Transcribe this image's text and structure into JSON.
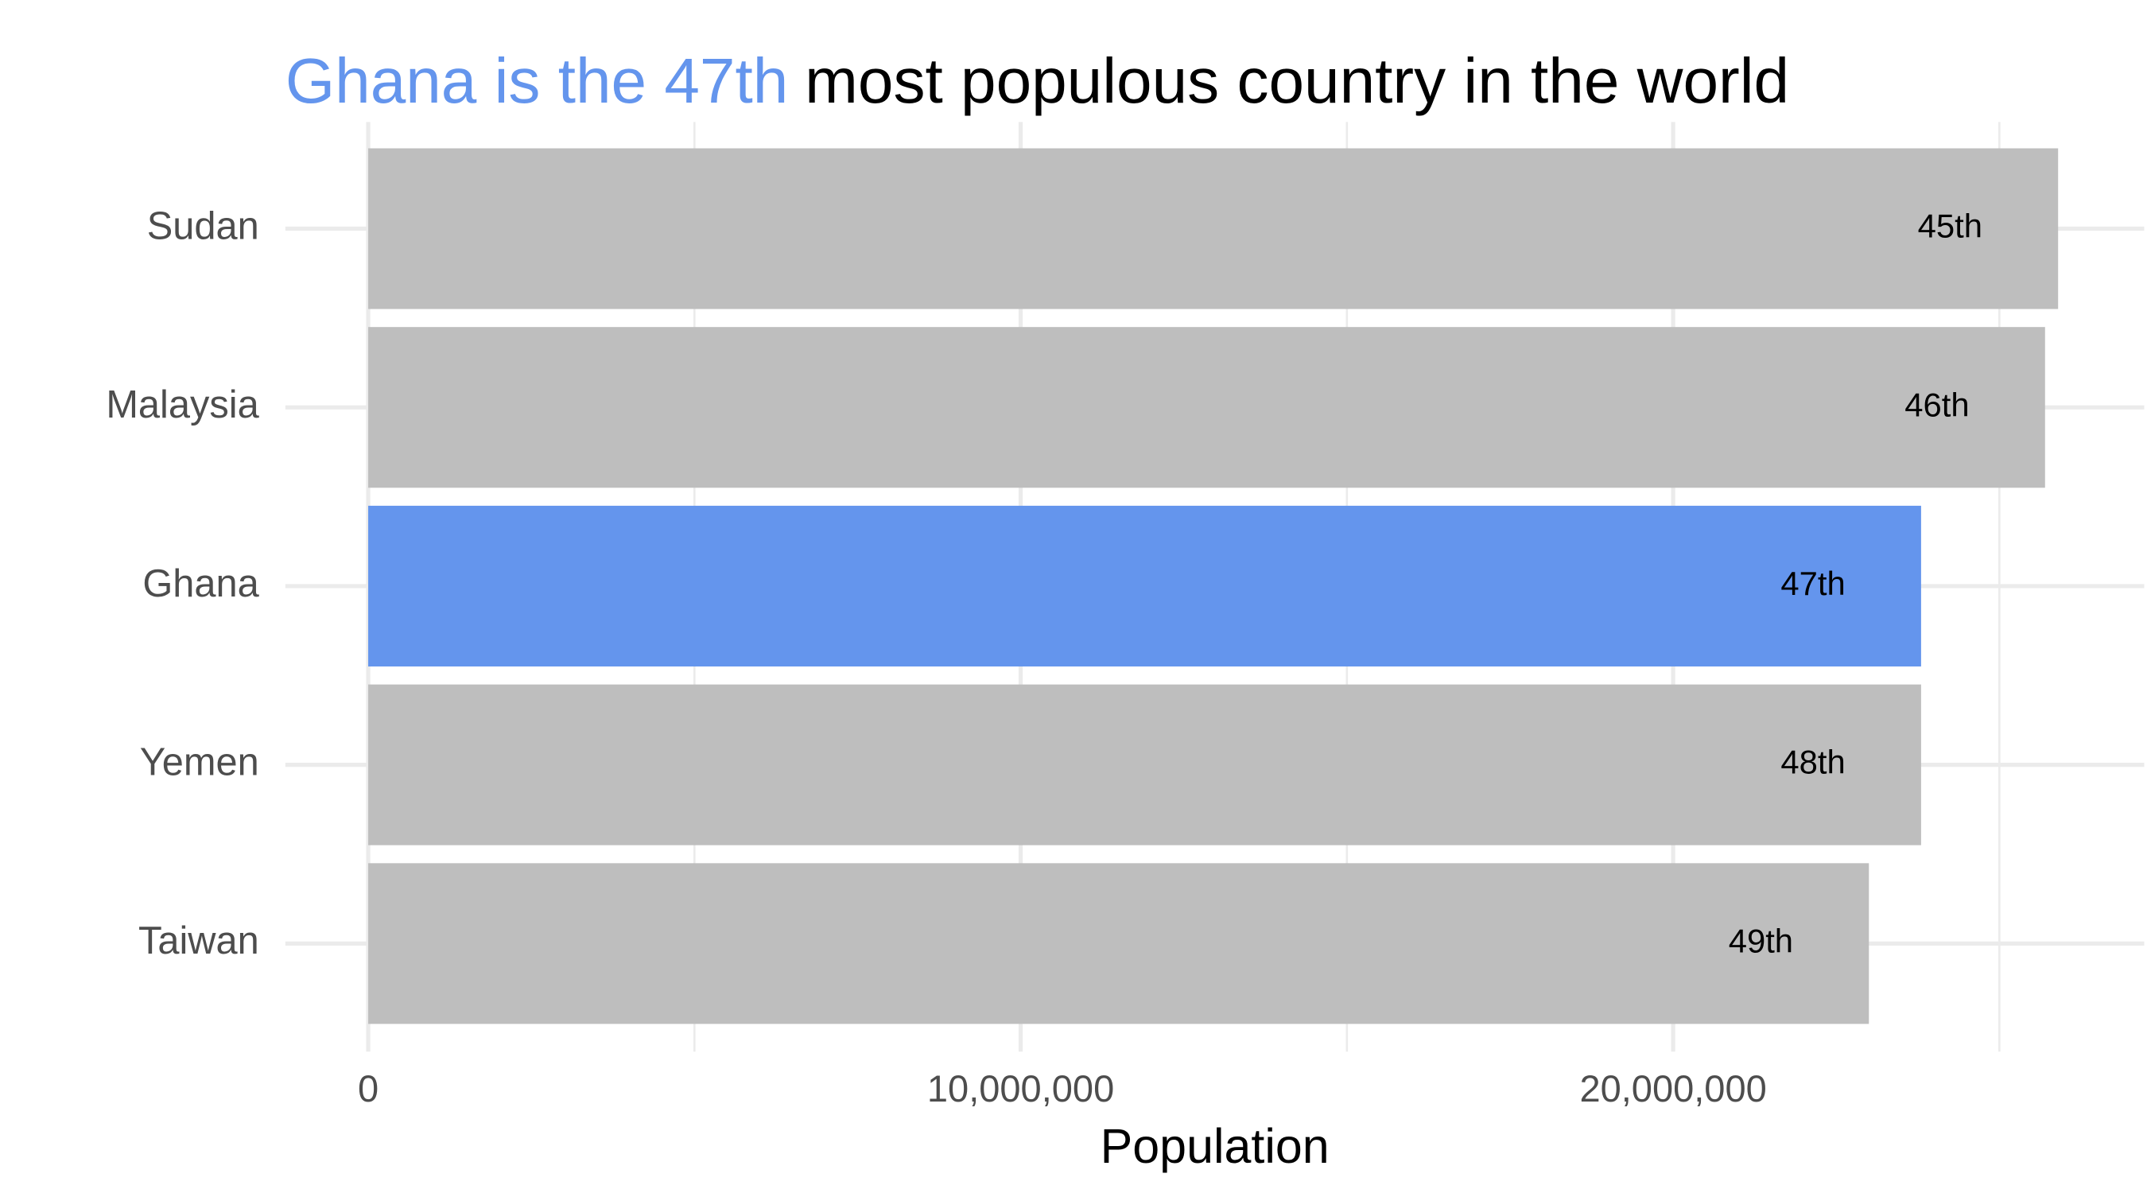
{
  "chart_data": {
    "type": "hbar",
    "title_parts": [
      {
        "text": "Ghana is the 47th",
        "color": "#6495ed"
      },
      {
        "text": "most populous country in the world",
        "color": "#000000"
      }
    ],
    "x_label": "Population",
    "categories": [
      "Sudan",
      "Malaysia",
      "Ghana",
      "Yemen",
      "Taiwan"
    ],
    "values": [
      25900000,
      25700000,
      23800000,
      23800000,
      23000000
    ],
    "bar_labels": [
      "45th",
      "46th",
      "47th",
      "48th",
      "49th"
    ],
    "colors": [
      "#bebebe",
      "#bebebe",
      "#6495ed",
      "#bebebe",
      "#bebebe"
    ],
    "xlim": [
      -1270000,
      27220000
    ],
    "xticks": [
      0,
      {
        "value": 10000000,
        "label": "10,000,000"
      },
      {
        "value": 20000000,
        "label": "20,000,000"
      }
    ],
    "minor_xticks": [
      5000000,
      15000000,
      25000000
    ],
    "grid": true
  }
}
